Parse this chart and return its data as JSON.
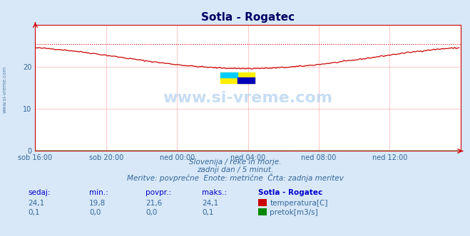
{
  "title": "Sotla - Rogatec",
  "bg_color": "#d8e8f8",
  "plot_bg_color": "#ffffff",
  "grid_color": "#ffb0b0",
  "x_labels": [
    "sob 16:00",
    "sob 20:00",
    "ned 00:00",
    "ned 04:00",
    "ned 08:00",
    "ned 12:00"
  ],
  "x_ticks": [
    0,
    48,
    96,
    144,
    192,
    240
  ],
  "x_max": 288,
  "y_min": 0,
  "y_max": 30,
  "y_ticks": [
    0,
    10,
    20
  ],
  "temp_color": "#cc0000",
  "pretok_color": "#008800",
  "dashed_value": 25.5,
  "watermark": "www.si-vreme.com",
  "ylabel_text": "www.si-vreme.com",
  "subtitle1": "Slovenija / reke in morje.",
  "subtitle2": "zadnji dan / 5 minut.",
  "subtitle3": "Meritve: povprečne  Enote: metrične  Črta: zadnja meritev",
  "legend_title": "Sotla - Rogatec",
  "sedaj_label": "sedaj:",
  "min_label": "min.:",
  "povpr_label": "povpr.:",
  "maks_label": "maks.:",
  "temp_sedaj": "24,1",
  "temp_min": "19,8",
  "temp_povpr": "21,6",
  "temp_maks": "24,1",
  "pretok_sedaj": "0,1",
  "pretok_min": "0,0",
  "pretok_povpr": "0,0",
  "pretok_maks": "0,1",
  "temp_label": "temperatura[C]",
  "pretok_label": "pretok[m3/s]",
  "axis_color": "#cc0000",
  "text_color": "#336699",
  "header_color": "#0000cc"
}
